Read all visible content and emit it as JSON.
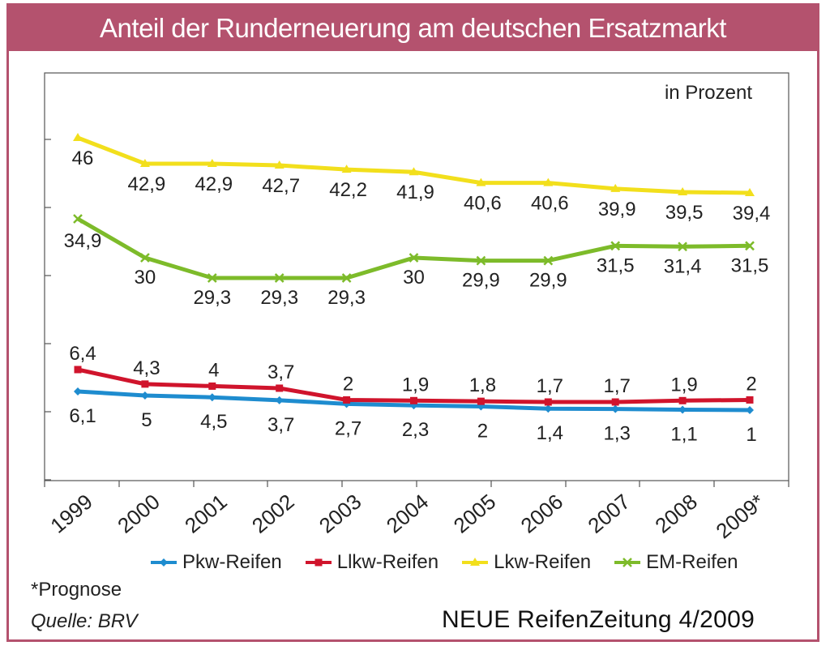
{
  "header": {
    "title": "Anteil der Runderneuerung am deutschen Ersatzmarkt"
  },
  "footnote": "*Prognose",
  "source": "Quelle: BRV",
  "publisher": "NEUE ReifenZeitung 4/2009",
  "chart_data": {
    "type": "line",
    "title": "Anteil der Runderneuerung am deutschen Ersatzmarkt",
    "unit_label": "in Prozent",
    "categories": [
      "1999",
      "2000",
      "2001",
      "2002",
      "2003",
      "2004",
      "2005",
      "2006",
      "2007",
      "2008",
      "2009*"
    ],
    "grid": false,
    "legend_position": "bottom",
    "series": [
      {
        "name": "Pkw-Reifen",
        "color": "#1e8ccf",
        "marker": "diamond",
        "values": [
          6.1,
          5,
          4.5,
          3.7,
          2.7,
          2.3,
          2,
          1.4,
          1.3,
          1.1,
          1
        ],
        "labels": [
          "6,1",
          "5",
          "4,5",
          "3,7",
          "2,7",
          "2,3",
          "2",
          "1,4",
          "1,3",
          "1,1",
          "1"
        ]
      },
      {
        "name": "Llkw-Reifen",
        "color": "#d0142c",
        "marker": "square",
        "values": [
          6.4,
          4.3,
          4,
          3.7,
          2,
          1.9,
          1.8,
          1.7,
          1.7,
          1.9,
          2
        ],
        "labels": [
          "6,4",
          "4,3",
          "4",
          "3,7",
          "2",
          "1,9",
          "1,8",
          "1,7",
          "1,7",
          "1,9",
          "2"
        ]
      },
      {
        "name": "Lkw-Reifen",
        "color": "#f2df1c",
        "marker": "triangle",
        "values": [
          46,
          42.9,
          42.9,
          42.7,
          42.2,
          41.9,
          40.6,
          40.6,
          39.9,
          39.5,
          39.4
        ],
        "labels": [
          "46",
          "42,9",
          "42,9",
          "42,7",
          "42,2",
          "41,9",
          "40,6",
          "40,6",
          "39,9",
          "39,5",
          "39,4"
        ]
      },
      {
        "name": "EM-Reifen",
        "color": "#7dbb2a",
        "marker": "x",
        "values": [
          34.9,
          30,
          29.3,
          29.3,
          29.3,
          30,
          29.9,
          29.9,
          31.5,
          31.4,
          31.5
        ],
        "labels": [
          "34,9",
          "30",
          "29,3",
          "29,3",
          "29,3",
          "30",
          "29,9",
          "29,9",
          "31,5",
          "31,4",
          "31,5"
        ]
      }
    ]
  }
}
